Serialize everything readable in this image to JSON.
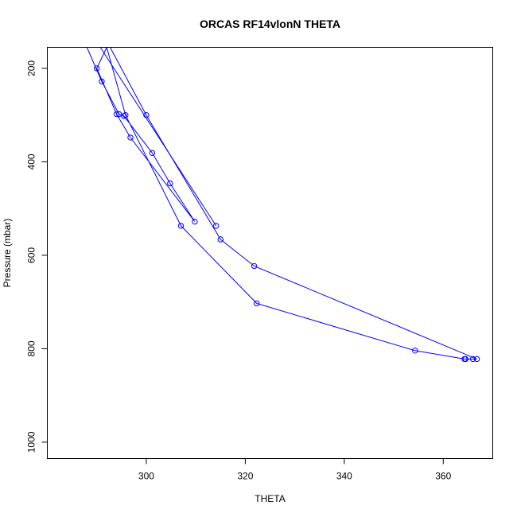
{
  "chart_data": {
    "type": "line",
    "title": "ORCAS RF14vlonN THETA",
    "xlabel": "THETA",
    "ylabel": "Pressure (mbar)",
    "xlim": [
      280,
      370
    ],
    "ylim": [
      1035,
      155
    ],
    "y_axis_reversed": true,
    "x_ticks": [
      300,
      320,
      340,
      360
    ],
    "y_ticks": [
      200,
      400,
      600,
      800,
      1000
    ],
    "grid": false,
    "color": "#0000ff",
    "markers": "open-circle",
    "series": [
      {
        "x": [
          288.0,
          291.0,
          294.5,
          295.5,
          301.2,
          304.8,
          309.8,
          296.8,
          294.0,
          290.0,
          292.0,
          295.8,
          307.0,
          322.3,
          354.3,
          364.3,
          364.5,
          366.0,
          366.8,
          321.8,
          315.0,
          300.0,
          292.7
        ],
        "y": [
          155,
          228,
          298,
          302,
          381,
          446,
          528,
          348,
          298,
          200,
          155,
          300,
          537,
          703,
          804,
          822,
          822,
          822,
          822,
          623,
          566,
          300,
          155
        ]
      },
      {
        "x": [
          290.7,
          314.1
        ],
        "y": [
          155,
          537
        ]
      }
    ]
  }
}
